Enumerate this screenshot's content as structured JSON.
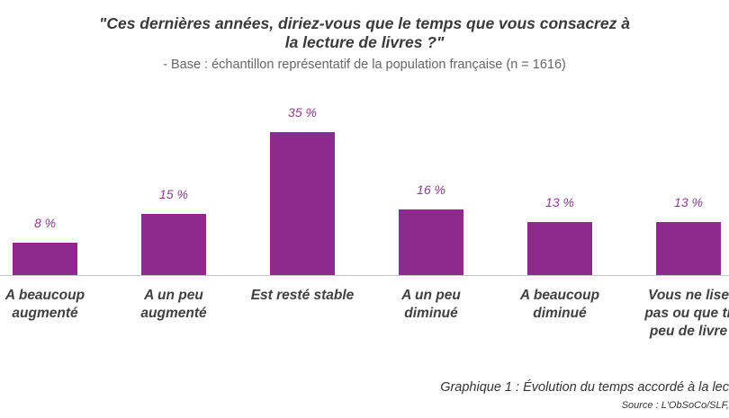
{
  "chart_data": {
    "type": "bar",
    "title": "\"Ces dernières années, diriez-vous que le temps que vous consacrez à\nla lecture de livres ?\"",
    "subtitle": "- Base : échantillon représentatif de la population française (n = 1616)",
    "categories": [
      "A beaucoup\naugmenté",
      "A un peu\naugmenté",
      "Est resté stable",
      "A un peu\ndiminué",
      "A beaucoup\ndiminué",
      "Vous ne lise\npas ou que tr\npeu de livre"
    ],
    "values": [
      8,
      15,
      35,
      16,
      13,
      13
    ],
    "value_labels": [
      "8 %",
      "15 %",
      "35 %",
      "16 %",
      "13 %",
      "13 %"
    ],
    "color": "#8e2a8e",
    "caption": "Graphique 1 : Évolution du temps accordé à la lec",
    "source": "Source : L'ObSoCo/SLF,"
  }
}
